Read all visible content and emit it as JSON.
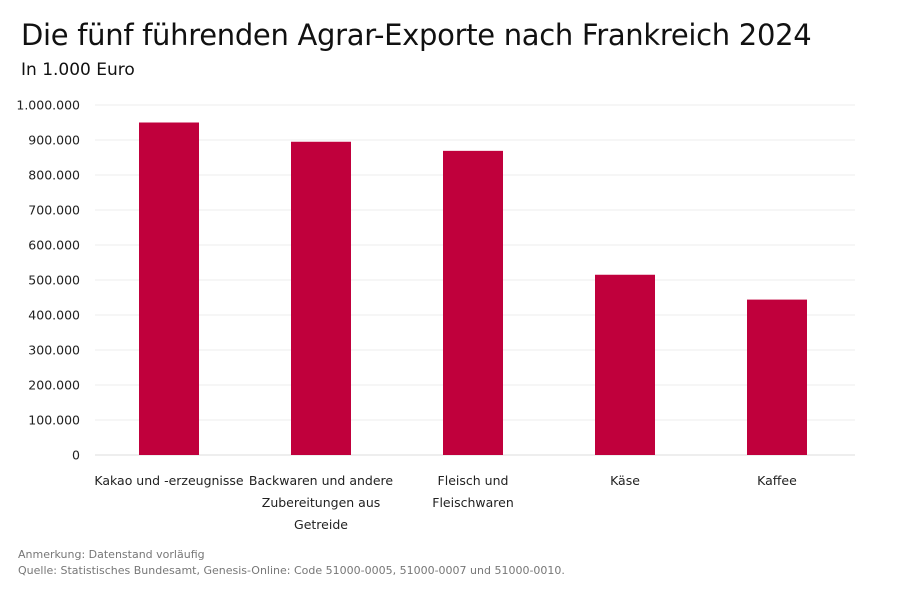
{
  "chart_data": {
    "type": "bar",
    "title": "Die fünf führenden Agrar-Exporte nach Frankreich 2024",
    "subtitle": "In 1.000 Euro",
    "categories": [
      [
        "Kakao und -erzeugnisse"
      ],
      [
        "Backwaren und andere",
        "Zubereitungen aus",
        "Getreide"
      ],
      [
        "Fleisch und",
        "Fleischwaren"
      ],
      [
        "Käse"
      ],
      [
        "Kaffee"
      ]
    ],
    "values": [
      950000,
      895000,
      869000,
      515000,
      444000
    ],
    "ylim": [
      0,
      1000000
    ],
    "yticks": [
      0,
      100000,
      200000,
      300000,
      400000,
      500000,
      600000,
      700000,
      800000,
      900000,
      1000000
    ],
    "ytick_labels": [
      "0",
      "100.000",
      "200.000",
      "300.000",
      "400.000",
      "500.000",
      "600.000",
      "700.000",
      "800.000",
      "900.000",
      "1.000.000"
    ],
    "grid": true,
    "bar_color": "#c0003c"
  },
  "notes": {
    "remark": "Anmerkung: Datenstand vorläufig",
    "source": "Quelle: Statistisches Bundesamt, Genesis-Online: Code 51000-0005, 51000-0007 und 51000-0010."
  }
}
